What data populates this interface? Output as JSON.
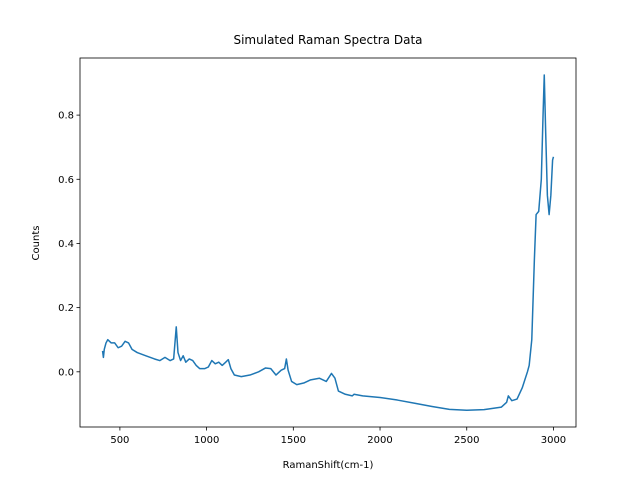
{
  "chart_data": {
    "type": "line",
    "title": "Simulated Raman Spectra Data",
    "x_label": "RamanShift(cm-1)",
    "y_label": "Counts",
    "color": "#1f77b4",
    "x": [
      400,
      405,
      410,
      420,
      430,
      450,
      470,
      490,
      510,
      530,
      550,
      570,
      600,
      650,
      700,
      730,
      760,
      790,
      810,
      825,
      835,
      850,
      865,
      880,
      900,
      920,
      940,
      960,
      990,
      1010,
      1030,
      1050,
      1070,
      1090,
      1110,
      1125,
      1140,
      1160,
      1200,
      1250,
      1300,
      1340,
      1370,
      1400,
      1430,
      1450,
      1460,
      1470,
      1490,
      1520,
      1560,
      1600,
      1650,
      1690,
      1720,
      1740,
      1760,
      1800,
      1840,
      1850,
      1900,
      2000,
      2100,
      2200,
      2300,
      2400,
      2500,
      2600,
      2700,
      2730,
      2740,
      2760,
      2790,
      2820,
      2850,
      2860,
      2875,
      2890,
      2900,
      2915,
      2930,
      2940,
      2947,
      2955,
      2965,
      2975,
      2985,
      2995,
      3000
    ],
    "values": [
      0.065,
      0.045,
      0.07,
      0.09,
      0.1,
      0.09,
      0.09,
      0.075,
      0.08,
      0.095,
      0.09,
      0.07,
      0.06,
      0.05,
      0.04,
      0.035,
      0.045,
      0.035,
      0.04,
      0.14,
      0.06,
      0.035,
      0.05,
      0.03,
      0.04,
      0.035,
      0.02,
      0.01,
      0.01,
      0.015,
      0.035,
      0.025,
      0.03,
      0.02,
      0.03,
      0.038,
      0.01,
      -0.01,
      -0.015,
      -0.01,
      0.0,
      0.012,
      0.01,
      -0.01,
      0.005,
      0.01,
      0.04,
      0.005,
      -0.03,
      -0.04,
      -0.035,
      -0.025,
      -0.02,
      -0.03,
      -0.005,
      -0.02,
      -0.06,
      -0.07,
      -0.075,
      -0.07,
      -0.075,
      -0.08,
      -0.088,
      -0.098,
      -0.108,
      -0.117,
      -0.12,
      -0.118,
      -0.11,
      -0.095,
      -0.075,
      -0.09,
      -0.085,
      -0.05,
      0.0,
      0.02,
      0.1,
      0.35,
      0.49,
      0.5,
      0.6,
      0.8,
      0.925,
      0.75,
      0.55,
      0.49,
      0.55,
      0.66,
      0.67
    ],
    "xlim": [
      270,
      3130
    ],
    "ylim": [
      -0.172,
      0.978
    ],
    "xticks": [
      500,
      1000,
      1500,
      2000,
      2500,
      3000
    ],
    "yticks": [
      {
        "value": 0,
        "label": "0.0"
      },
      0.2,
      0.4,
      0.6,
      0.8
    ]
  }
}
